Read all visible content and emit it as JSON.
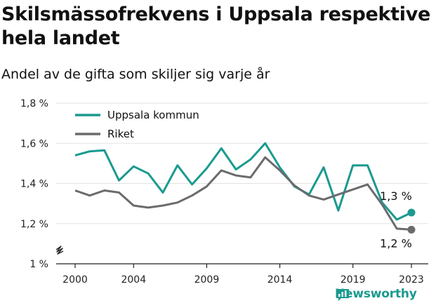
{
  "title": "Skilsmässofrekvens i Uppsala respektive hela landet",
  "subtitle": "Andel av de gifta som skiljer sig varje år",
  "brand": "Newsworthy",
  "chart_data": {
    "type": "line",
    "x": [
      2000,
      2001,
      2002,
      2003,
      2004,
      2005,
      2006,
      2007,
      2008,
      2009,
      2010,
      2011,
      2012,
      2013,
      2014,
      2015,
      2016,
      2017,
      2018,
      2019,
      2020,
      2021,
      2022,
      2023
    ],
    "series": [
      {
        "name": "Uppsala kommun",
        "color": "#1a9a8f",
        "values": [
          1.54,
          1.56,
          1.565,
          1.415,
          1.485,
          1.45,
          1.355,
          1.49,
          1.395,
          1.475,
          1.575,
          1.47,
          1.52,
          1.6,
          1.48,
          1.385,
          1.345,
          1.48,
          1.265,
          1.49,
          1.49,
          1.305,
          1.22,
          1.255
        ]
      },
      {
        "name": "Riket",
        "color": "#6b6b6e",
        "values": [
          1.365,
          1.34,
          1.365,
          1.355,
          1.29,
          1.28,
          1.29,
          1.305,
          1.34,
          1.385,
          1.465,
          1.44,
          1.43,
          1.53,
          1.465,
          1.39,
          1.34,
          1.32,
          1.345,
          1.37,
          1.395,
          1.295,
          1.175,
          1.17
        ]
      }
    ],
    "end_labels": [
      "1,3 %",
      "1,2 %"
    ],
    "xticks": [
      2000,
      2004,
      2009,
      2014,
      2019,
      2023
    ],
    "xtick_labels": [
      "2000",
      "2004",
      "2009",
      "2014",
      "2019",
      "2023"
    ],
    "yticks": [
      1.0,
      1.2,
      1.4,
      1.6,
      1.8
    ],
    "ytick_labels": [
      "1 %",
      "1,2 %",
      "1,4 %",
      "1,6 %",
      "1,8 %"
    ],
    "ylim": [
      1.0,
      1.8
    ],
    "xlim": [
      2000,
      2023
    ],
    "grid": true,
    "legend_position": "top-left",
    "axis_break": true
  }
}
